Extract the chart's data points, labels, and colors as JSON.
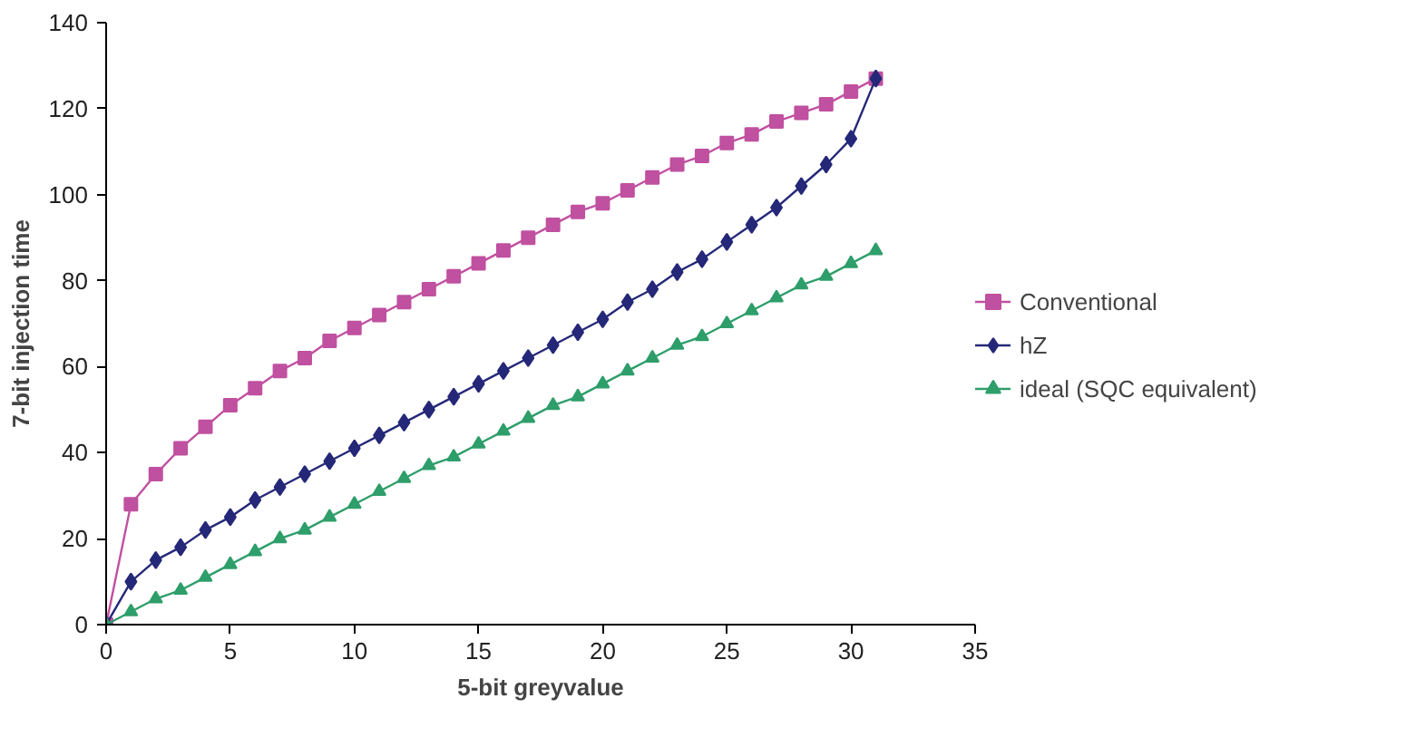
{
  "chart_data": {
    "type": "line",
    "xlabel": "5-bit greyvalue",
    "ylabel": "7-bit injection time",
    "x": [
      0,
      1,
      2,
      3,
      4,
      5,
      6,
      7,
      8,
      9,
      10,
      11,
      12,
      13,
      14,
      15,
      16,
      17,
      18,
      19,
      20,
      21,
      22,
      23,
      24,
      25,
      26,
      27,
      28,
      29,
      30,
      31
    ],
    "series": [
      {
        "name": "Conventional",
        "color": "#c050a0",
        "marker": "square",
        "values": [
          0,
          28,
          35,
          41,
          46,
          51,
          55,
          59,
          62,
          66,
          69,
          72,
          75,
          78,
          81,
          84,
          87,
          90,
          93,
          96,
          98,
          101,
          104,
          107,
          109,
          112,
          114,
          117,
          119,
          121,
          124,
          127
        ]
      },
      {
        "name": "hZ",
        "color": "#252878",
        "marker": "diamond",
        "values": [
          0,
          10,
          15,
          18,
          22,
          25,
          29,
          32,
          35,
          38,
          41,
          44,
          47,
          50,
          53,
          56,
          59,
          62,
          65,
          68,
          71,
          75,
          78,
          82,
          85,
          89,
          93,
          97,
          102,
          107,
          113,
          127
        ]
      },
      {
        "name": "ideal (SQC equivalent)",
        "color": "#2e9e6a",
        "marker": "triangle",
        "values": [
          0,
          3,
          6,
          8,
          11,
          14,
          17,
          20,
          22,
          25,
          28,
          31,
          34,
          37,
          39,
          42,
          45,
          48,
          51,
          53,
          56,
          59,
          62,
          65,
          67,
          70,
          73,
          76,
          79,
          81,
          84,
          87
        ]
      }
    ],
    "xlim": [
      0,
      35
    ],
    "xticks": [
      0,
      5,
      10,
      15,
      20,
      25,
      30,
      35
    ],
    "ylim": [
      0,
      140
    ],
    "yticks": [
      0,
      20,
      40,
      60,
      80,
      100,
      120,
      140
    ],
    "grid": false,
    "legend": "right"
  }
}
